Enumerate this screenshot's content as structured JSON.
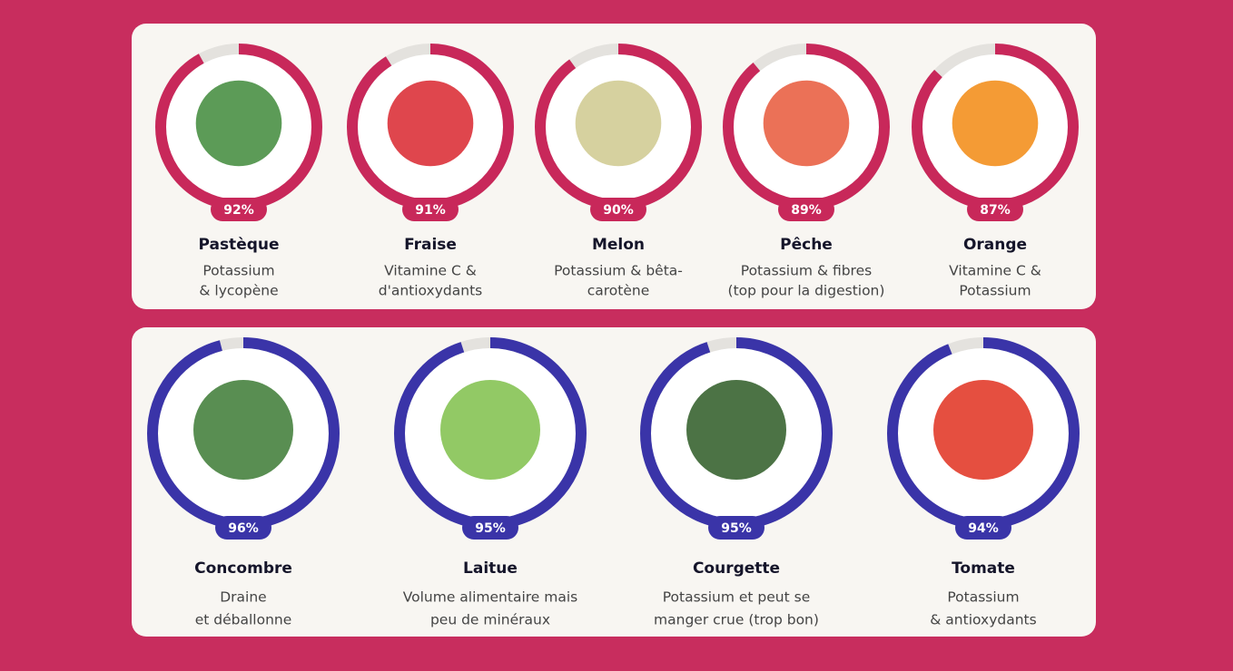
{
  "groups": [
    {
      "color": "#c8285a",
      "items": [
        {
          "name": "Pastèque",
          "value": 92,
          "value_label": "92%",
          "description": [
            "Potassium",
            "& lycopène"
          ]
        },
        {
          "name": "Fraise",
          "value": 91,
          "value_label": "91%",
          "description": [
            "Vitamine C &",
            "d'antioxydants"
          ]
        },
        {
          "name": "Melon",
          "value": 90,
          "value_label": "90%",
          "description": [
            "Potassium & bêta-",
            "carotène"
          ]
        },
        {
          "name": "Pêche",
          "value": 89,
          "value_label": "89%",
          "description": [
            "Potassium & fibres",
            "(top pour la digestion)"
          ]
        },
        {
          "name": "Orange",
          "value": 87,
          "value_label": "87%",
          "description": [
            "Vitamine C &",
            "Potassium"
          ]
        }
      ]
    },
    {
      "color": "#3a34a8",
      "items": [
        {
          "name": "Concombre",
          "value": 96,
          "value_label": "96%",
          "description": [
            "Draine",
            "et déballonne"
          ]
        },
        {
          "name": "Laitue",
          "value": 95,
          "value_label": "95%",
          "description": [
            "Volume alimentaire mais",
            "peu de minéraux"
          ]
        },
        {
          "name": "Courgette",
          "value": 95,
          "value_label": "95%",
          "description": [
            "Potassium et peut se",
            "manger crue (trop bon)"
          ]
        },
        {
          "name": "Tomate",
          "value": 94,
          "value_label": "94%",
          "description": [
            "Potassium",
            "& antioxydants"
          ]
        }
      ]
    }
  ]
}
